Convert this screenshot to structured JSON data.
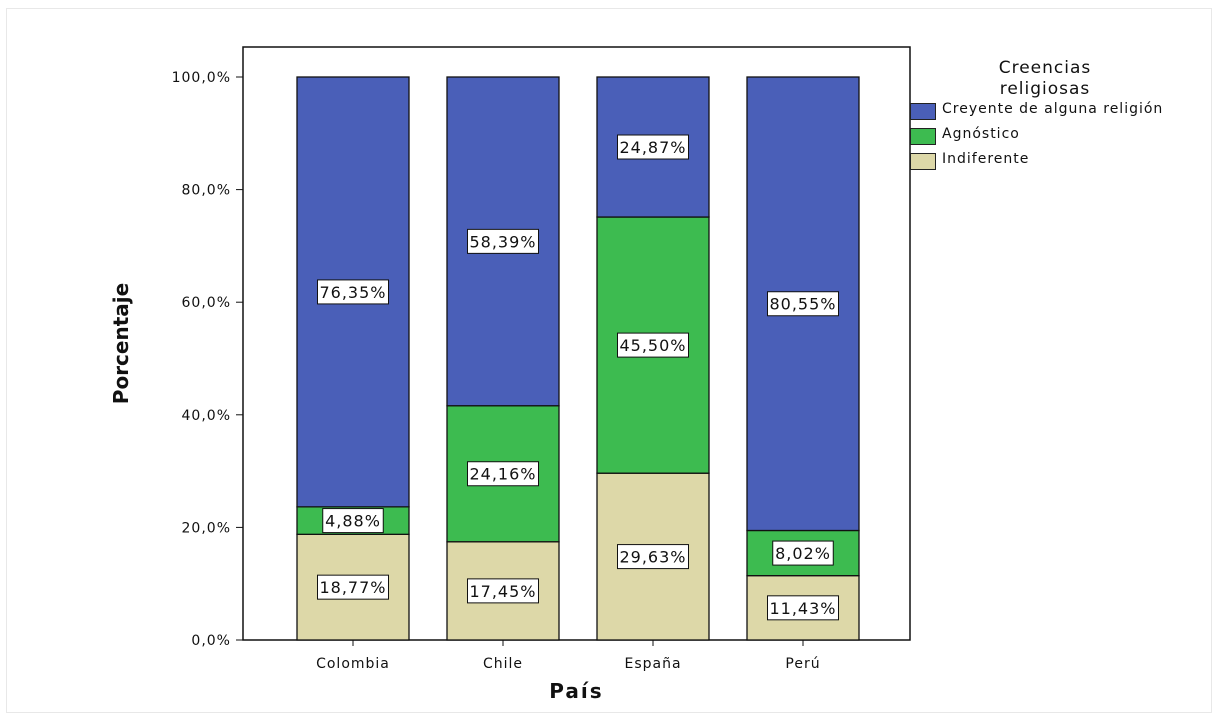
{
  "chart_data": {
    "type": "bar",
    "stacked": true,
    "categories": [
      "Colombia",
      "Chile",
      "España",
      "Perú"
    ],
    "series": [
      {
        "name": "Indiferente",
        "values": [
          18.77,
          17.45,
          29.63,
          11.43
        ],
        "labels": [
          "18,77%",
          "17,45%",
          "29,63%",
          "11,43%"
        ],
        "color": "#ddd8a8"
      },
      {
        "name": "Agnóstico",
        "values": [
          4.88,
          24.16,
          45.5,
          8.02
        ],
        "labels": [
          "4,88%",
          "24,16%",
          "45,50%",
          "8,02%"
        ],
        "color": "#3dbb50"
      },
      {
        "name": "Creyente de alguna religión",
        "values": [
          76.35,
          58.39,
          24.87,
          80.55
        ],
        "labels": [
          "76,35%",
          "58,39%",
          "24,87%",
          "80,55%"
        ],
        "color": "#4a5fb8"
      }
    ],
    "xlabel": "País",
    "ylabel": "Porcentaje",
    "ylim": [
      0,
      100
    ],
    "yticks": [
      "0,0%",
      "20,0%",
      "40,0%",
      "60,0%",
      "80,0%",
      "100,0%"
    ],
    "legend": {
      "title": "Creencias\nreligiosas",
      "position": "right",
      "entries": [
        "Creyente de alguna religión",
        "Agnóstico",
        "Indiferente"
      ],
      "colors": [
        "#4a5fb8",
        "#3dbb50",
        "#ddd8a8"
      ]
    },
    "grid": false
  }
}
